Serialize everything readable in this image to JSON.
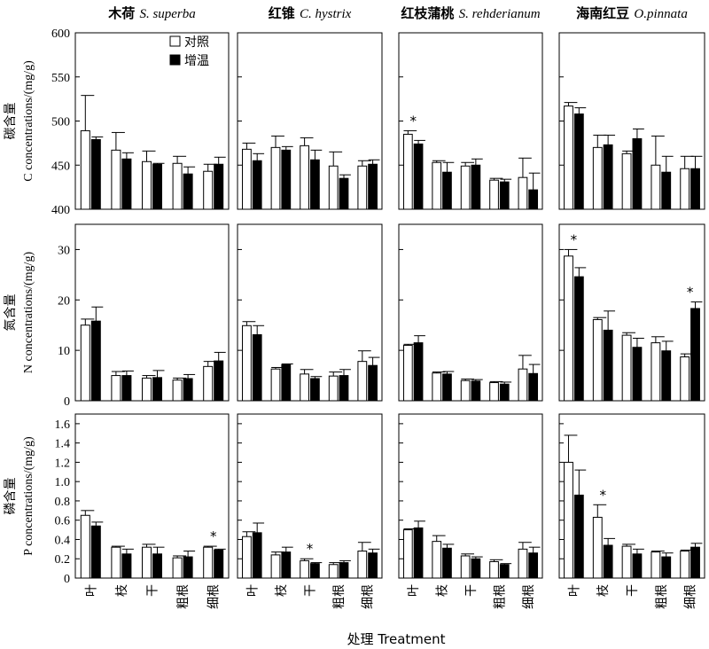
{
  "chart_data": {
    "type": "bar",
    "categories": [
      "叶",
      "枝",
      "干",
      "粗根",
      "细根"
    ],
    "legend": [
      {
        "label": "对照",
        "color": "#ffffff"
      },
      {
        "label": "增温",
        "color": "#000000"
      }
    ],
    "legend_position": "top-right of first panel",
    "grid": false,
    "xlabel": "处理  Treatment",
    "species": [
      {
        "cn": "木荷",
        "latin": "S. superba"
      },
      {
        "cn": "红锥",
        "latin": "C. hystrix"
      },
      {
        "cn": "红枝蒲桃",
        "latin": "S. rehderianum"
      },
      {
        "cn": "海南红豆",
        "latin": "O.pinnata"
      }
    ],
    "rows": [
      {
        "ylabel_cn": "碳含量",
        "ylabel_en": "C concentrations/(mg/g)",
        "ylim": [
          400,
          600
        ],
        "ticks": [
          400,
          450,
          500,
          550,
          600
        ],
        "panels": [
          {
            "series": [
              {
                "name": "对照",
                "values": [
                  489,
                  467,
                  454,
                  452,
                  443
                ],
                "errors": [
                  40,
                  20,
                  12,
                  8,
                  8
                ]
              },
              {
                "name": "增温",
                "values": [
                  479,
                  457,
                  451,
                  440,
                  451
                ],
                "errors": [
                  3,
                  7,
                  1,
                  8,
                  8
                ]
              }
            ],
            "sig": []
          },
          {
            "series": [
              {
                "name": "对照",
                "values": [
                  468,
                  470,
                  472,
                  449,
                  449
                ],
                "errors": [
                  7,
                  13,
                  9,
                  16,
                  6
                ]
              },
              {
                "name": "增温",
                "values": [
                  455,
                  467,
                  456,
                  435,
                  451
                ],
                "errors": [
                  8,
                  4,
                  11,
                  4,
                  5
                ]
              }
            ],
            "sig": []
          },
          {
            "series": [
              {
                "name": "对照",
                "values": [
                  485,
                  453,
                  449,
                  433,
                  436
                ],
                "errors": [
                  4,
                  2,
                  4,
                  2,
                  22
                ]
              },
              {
                "name": "增温",
                "values": [
                  474,
                  442,
                  450,
                  431,
                  422
                ],
                "errors": [
                  4,
                  11,
                  7,
                  3,
                  19
                ]
              }
            ],
            "sig": [
              0
            ]
          },
          {
            "series": [
              {
                "name": "对照",
                "values": [
                  517,
                  470,
                  463,
                  450,
                  446
                ],
                "errors": [
                  4,
                  14,
                  3,
                  33,
                  14
                ]
              },
              {
                "name": "增温",
                "values": [
                  508,
                  473,
                  480,
                  442,
                  446
                ],
                "errors": [
                  7,
                  11,
                  11,
                  18,
                  14
                ]
              }
            ],
            "sig": []
          }
        ]
      },
      {
        "ylabel_cn": "氮含量",
        "ylabel_en": "N concentrations/(mg/g)",
        "ylim": [
          0,
          35
        ],
        "ticks": [
          0,
          10,
          20,
          30
        ],
        "panels": [
          {
            "series": [
              {
                "name": "对照",
                "values": [
                  15.0,
                  5.0,
                  4.5,
                  4.1,
                  6.8
                ],
                "errors": [
                  1.2,
                  0.8,
                  0.5,
                  0.4,
                  1.0
                ]
              },
              {
                "name": "增温",
                "values": [
                  15.8,
                  5.0,
                  4.6,
                  4.4,
                  7.9
                ],
                "errors": [
                  2.8,
                  0.9,
                  1.4,
                  0.8,
                  1.7
                ]
              }
            ],
            "sig": []
          },
          {
            "series": [
              {
                "name": "对照",
                "values": [
                  14.9,
                  6.3,
                  5.3,
                  4.9,
                  7.8
                ],
                "errors": [
                  0.8,
                  0.3,
                  0.9,
                  0.8,
                  2.1
                ]
              },
              {
                "name": "增温",
                "values": [
                  13.1,
                  7.2,
                  4.4,
                  5.0,
                  7.0
                ],
                "errors": [
                  1.8,
                  0.1,
                  0.4,
                  1.2,
                  1.6
                ]
              }
            ],
            "sig": []
          },
          {
            "series": [
              {
                "name": "对照",
                "values": [
                  11.0,
                  5.5,
                  4.0,
                  3.6,
                  6.3
                ],
                "errors": [
                  0.2,
                  0.2,
                  0.3,
                  0.2,
                  2.7
                ]
              },
              {
                "name": "增温",
                "values": [
                  11.5,
                  5.3,
                  3.9,
                  3.3,
                  5.4
                ],
                "errors": [
                  1.4,
                  0.5,
                  0.3,
                  0.4,
                  1.8
                ]
              }
            ],
            "sig": []
          },
          {
            "series": [
              {
                "name": "对照",
                "values": [
                  28.7,
                  16.1,
                  13.0,
                  11.5,
                  8.7
                ],
                "errors": [
                  1.3,
                  0.4,
                  0.5,
                  1.2,
                  0.6
                ]
              },
              {
                "name": "增温",
                "values": [
                  24.6,
                  14.0,
                  10.6,
                  9.9,
                  18.3
                ],
                "errors": [
                  1.8,
                  3.8,
                  1.8,
                  1.9,
                  1.3
                ]
              }
            ],
            "sig": [
              0,
              4
            ]
          }
        ]
      },
      {
        "ylabel_cn": "磷含量",
        "ylabel_en": "P concentrations/(mg/g)",
        "ylim": [
          0,
          1.7
        ],
        "ticks": [
          0,
          0.2,
          0.4,
          0.6,
          0.8,
          1.0,
          1.2,
          1.4,
          1.6
        ],
        "tick_labels": [
          "0",
          "0.2",
          "0.4",
          "0.6",
          "0.8",
          "1.0",
          "1.2",
          "1.4",
          "1.6"
        ],
        "panels": [
          {
            "series": [
              {
                "name": "对照",
                "values": [
                  0.65,
                  0.32,
                  0.32,
                  0.21,
                  0.32
                ],
                "errors": [
                  0.05,
                  0.01,
                  0.03,
                  0.02,
                  0.01
                ]
              },
              {
                "name": "增温",
                "values": [
                  0.54,
                  0.25,
                  0.25,
                  0.22,
                  0.29
                ],
                "errors": [
                  0.04,
                  0.05,
                  0.07,
                  0.06,
                  0.01
                ]
              }
            ],
            "sig": [
              4
            ]
          },
          {
            "series": [
              {
                "name": "对照",
                "values": [
                  0.43,
                  0.24,
                  0.18,
                  0.14,
                  0.28
                ],
                "errors": [
                  0.05,
                  0.03,
                  0.02,
                  0.02,
                  0.09
                ]
              },
              {
                "name": "增温",
                "values": [
                  0.47,
                  0.27,
                  0.15,
                  0.16,
                  0.26
                ],
                "errors": [
                  0.1,
                  0.05,
                  0.01,
                  0.02,
                  0.04
                ]
              }
            ],
            "sig": [
              2
            ]
          },
          {
            "series": [
              {
                "name": "对照",
                "values": [
                  0.5,
                  0.38,
                  0.23,
                  0.17,
                  0.3
                ],
                "errors": [
                  0.01,
                  0.06,
                  0.02,
                  0.02,
                  0.07
                ]
              },
              {
                "name": "增温",
                "values": [
                  0.52,
                  0.31,
                  0.2,
                  0.14,
                  0.26
                ],
                "errors": [
                  0.07,
                  0.04,
                  0.02,
                  0.01,
                  0.06
                ]
              }
            ],
            "sig": []
          },
          {
            "series": [
              {
                "name": "对照",
                "values": [
                  1.2,
                  0.63,
                  0.33,
                  0.27,
                  0.28
                ],
                "errors": [
                  0.28,
                  0.13,
                  0.02,
                  0.01,
                  0.01
                ]
              },
              {
                "name": "增温",
                "values": [
                  0.86,
                  0.34,
                  0.25,
                  0.22,
                  0.32
                ],
                "errors": [
                  0.26,
                  0.07,
                  0.05,
                  0.04,
                  0.04
                ]
              }
            ],
            "sig": [
              1
            ]
          }
        ]
      }
    ],
    "significance_marker": "*"
  }
}
